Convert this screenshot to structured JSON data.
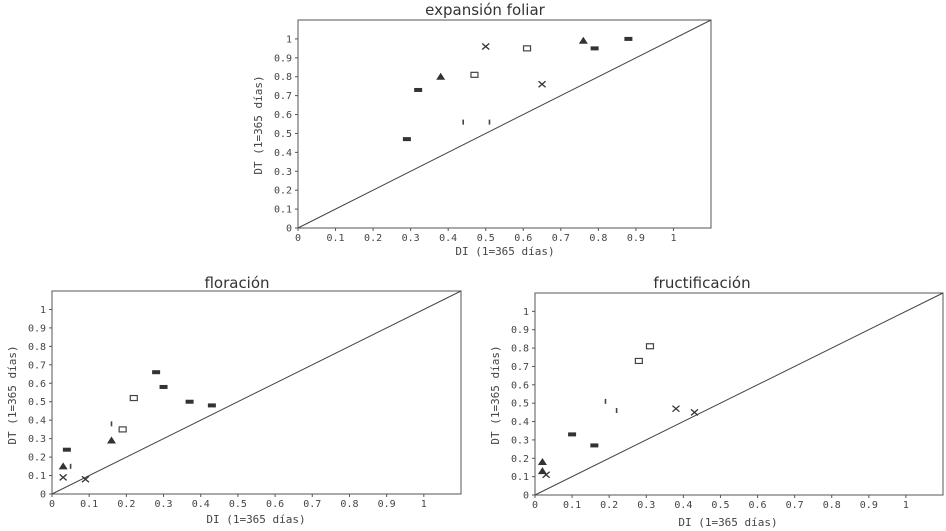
{
  "chart_data": [
    {
      "type": "scatter",
      "title": "expansión foliar",
      "xlabel": "DI (1=365 días)",
      "ylabel": "DT (1=365 días)",
      "xlim": [
        0,
        1.1
      ],
      "ylim": [
        0,
        1.1
      ],
      "xticks": [
        "0",
        "0.1",
        "0.2",
        "0.3",
        "0.4",
        "0.5",
        "0.6",
        "0.7",
        "0.8",
        "0.9",
        "1"
      ],
      "yticks": [
        "0",
        "0.1",
        "0.2",
        "0.3",
        "0.4",
        "0.5",
        "0.6",
        "0.7",
        "0.8",
        "0.9",
        "1"
      ],
      "reference_line": "diagonal y = x",
      "points": [
        {
          "x": 0.29,
          "y": 0.47,
          "marker": "bar"
        },
        {
          "x": 0.32,
          "y": 0.73,
          "marker": "bar"
        },
        {
          "x": 0.38,
          "y": 0.8,
          "marker": "triangle"
        },
        {
          "x": 0.44,
          "y": 0.56,
          "marker": "tick"
        },
        {
          "x": 0.47,
          "y": 0.81,
          "marker": "square"
        },
        {
          "x": 0.5,
          "y": 0.96,
          "marker": "x"
        },
        {
          "x": 0.51,
          "y": 0.56,
          "marker": "tick"
        },
        {
          "x": 0.61,
          "y": 0.95,
          "marker": "square"
        },
        {
          "x": 0.65,
          "y": 0.76,
          "marker": "x"
        },
        {
          "x": 0.76,
          "y": 0.99,
          "marker": "triangle"
        },
        {
          "x": 0.79,
          "y": 0.95,
          "marker": "bar"
        },
        {
          "x": 0.88,
          "y": 1.0,
          "marker": "bar"
        }
      ]
    },
    {
      "type": "scatter",
      "title": "floración",
      "xlabel": "DI (1=365 días)",
      "ylabel": "DT (1=365 días)",
      "xlim": [
        0,
        1.1
      ],
      "ylim": [
        0,
        1.1
      ],
      "xticks": [
        "0",
        "0.1",
        "0.2",
        "0.3",
        "0.4",
        "0.5",
        "0.6",
        "0.7",
        "0.8",
        "0.9",
        "1"
      ],
      "yticks": [
        "0",
        "0.1",
        "0.2",
        "0.3",
        "0.4",
        "0.5",
        "0.6",
        "0.7",
        "0.8",
        "0.9",
        "1"
      ],
      "reference_line": "diagonal y = x",
      "points": [
        {
          "x": 0.03,
          "y": 0.09,
          "marker": "x"
        },
        {
          "x": 0.03,
          "y": 0.15,
          "marker": "triangle"
        },
        {
          "x": 0.05,
          "y": 0.15,
          "marker": "tick"
        },
        {
          "x": 0.04,
          "y": 0.24,
          "marker": "bar"
        },
        {
          "x": 0.09,
          "y": 0.08,
          "marker": "x"
        },
        {
          "x": 0.16,
          "y": 0.29,
          "marker": "triangle"
        },
        {
          "x": 0.16,
          "y": 0.38,
          "marker": "tick"
        },
        {
          "x": 0.19,
          "y": 0.35,
          "marker": "square"
        },
        {
          "x": 0.22,
          "y": 0.52,
          "marker": "square"
        },
        {
          "x": 0.28,
          "y": 0.66,
          "marker": "bar"
        },
        {
          "x": 0.3,
          "y": 0.58,
          "marker": "bar"
        },
        {
          "x": 0.37,
          "y": 0.5,
          "marker": "bar"
        },
        {
          "x": 0.43,
          "y": 0.48,
          "marker": "bar"
        }
      ]
    },
    {
      "type": "scatter",
      "title": "fructificación",
      "xlabel": "DI (1=365 días)",
      "ylabel": "DT (1=365 días)",
      "xlim": [
        0,
        1.1
      ],
      "ylim": [
        0,
        1.1
      ],
      "xticks": [
        "0",
        "0.1",
        "0.2",
        "0.3",
        "0.4",
        "0.5",
        "0.6",
        "0.7",
        "0.8",
        "0.9",
        "1"
      ],
      "yticks": [
        "0",
        "0.1",
        "0.2",
        "0.3",
        "0.4",
        "0.5",
        "0.6",
        "0.7",
        "0.8",
        "0.9",
        "1"
      ],
      "reference_line": "diagonal y = x",
      "points": [
        {
          "x": 0.02,
          "y": 0.18,
          "marker": "triangle"
        },
        {
          "x": 0.02,
          "y": 0.13,
          "marker": "triangle"
        },
        {
          "x": 0.03,
          "y": 0.11,
          "marker": "x"
        },
        {
          "x": 0.1,
          "y": 0.33,
          "marker": "bar"
        },
        {
          "x": 0.16,
          "y": 0.27,
          "marker": "bar"
        },
        {
          "x": 0.19,
          "y": 0.51,
          "marker": "tick"
        },
        {
          "x": 0.22,
          "y": 0.46,
          "marker": "tick"
        },
        {
          "x": 0.28,
          "y": 0.73,
          "marker": "square"
        },
        {
          "x": 0.31,
          "y": 0.81,
          "marker": "square"
        },
        {
          "x": 0.38,
          "y": 0.47,
          "marker": "x"
        },
        {
          "x": 0.43,
          "y": 0.45,
          "marker": "x"
        }
      ]
    }
  ]
}
